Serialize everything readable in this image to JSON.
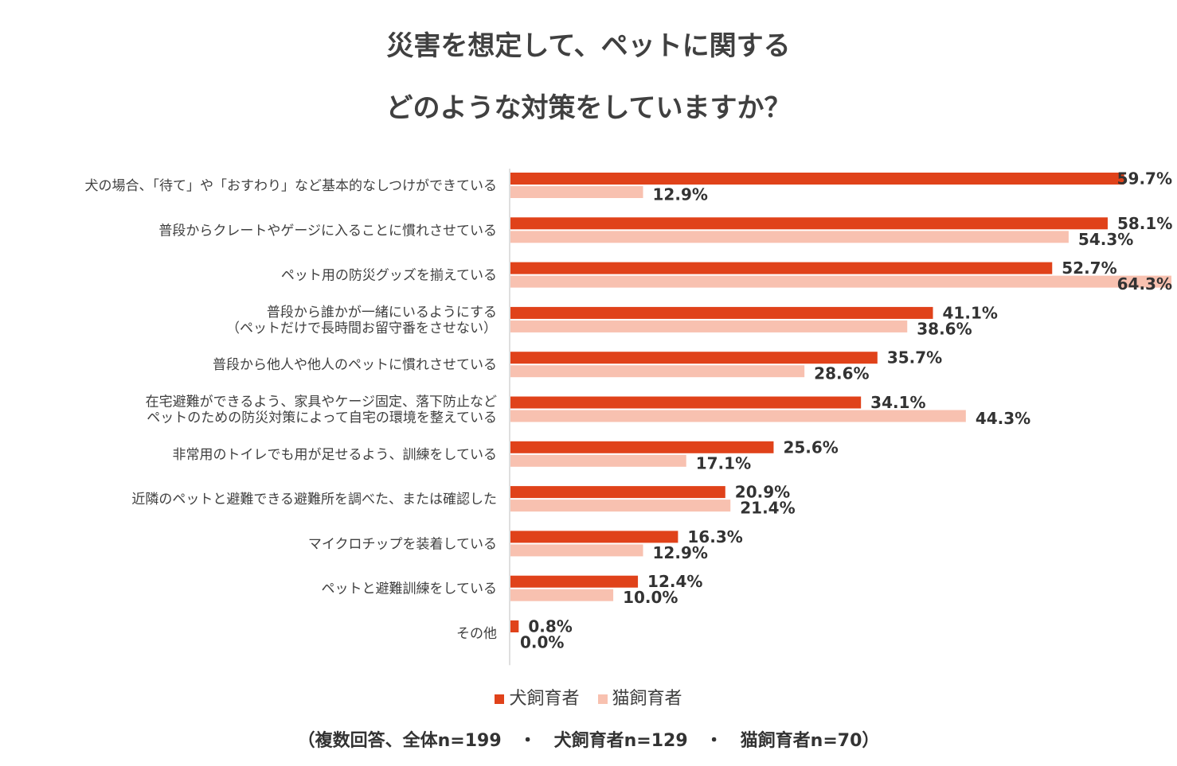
{
  "title_line1": "災害を想定して、ペットに関する",
  "title_line2": "どのような対策をしていますか？",
  "note": "（複数回答、全体n=199　・　犬飼育者n=129　・　猫飼育者n=70）",
  "chart_data": {
    "type": "bar",
    "orientation": "horizontal",
    "categories": [
      [
        "犬の場合、「待て」や「おすわり」など基本的なしつけができている"
      ],
      [
        "普段からクレートやゲージに入ることに慣れさせている"
      ],
      [
        "ペット用の防災グッズを揃えている"
      ],
      [
        "普段から誰かが一緒にいるようにする",
        "（ペットだけで長時間お留守番をさせない）"
      ],
      [
        "普段から他人や他人のペットに慣れさせている"
      ],
      [
        "在宅避難ができるよう、家具やケージ固定、落下防止など",
        "ペットのための防災対策によって自宅の環境を整えている"
      ],
      [
        "非常用のトイレでも用が足せるよう、訓練をしている"
      ],
      [
        "近隣のペットと避難できる避難所を調べた、または確認した"
      ],
      [
        "マイクロチップを装着している"
      ],
      [
        "ペットと避難訓練をしている"
      ],
      [
        "その他"
      ]
    ],
    "series": [
      {
        "name": "犬飼育者",
        "color": "#E0421A",
        "values": [
          59.7,
          58.1,
          52.7,
          41.1,
          35.7,
          34.1,
          25.6,
          20.9,
          16.3,
          12.4,
          0.8
        ],
        "labels": [
          "59.7%",
          "58.1%",
          "52.7%",
          "41.1%",
          "35.7%",
          "34.1%",
          "25.6%",
          "20.9%",
          "16.3%",
          "12.4%",
          "0.8%"
        ]
      },
      {
        "name": "猫飼育者",
        "color": "#F8C1B0",
        "values": [
          12.9,
          54.3,
          64.3,
          38.6,
          28.6,
          44.3,
          17.1,
          21.4,
          12.9,
          10.0,
          0.0
        ],
        "labels": [
          "12.9%",
          "54.3%",
          "64.3%",
          "38.6%",
          "28.6%",
          "44.3%",
          "17.1%",
          "21.4%",
          "12.9%",
          "10.0%",
          "0.0%"
        ]
      }
    ],
    "xlim": [
      0,
      64.3
    ],
    "legend_position": "bottom",
    "grid": false
  }
}
